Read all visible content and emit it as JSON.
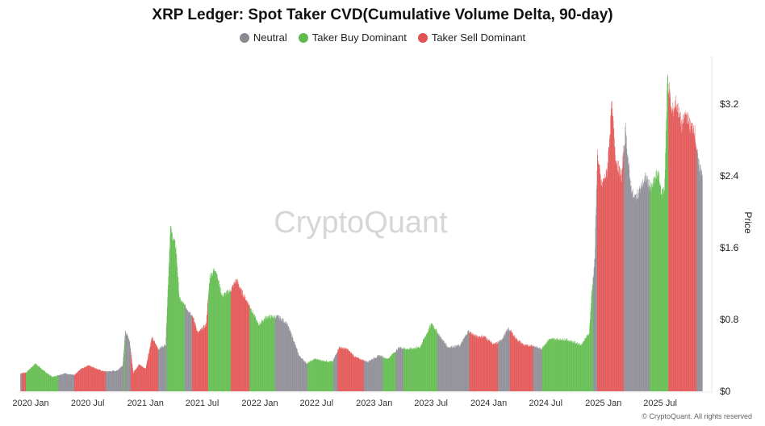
{
  "chart_data": {
    "type": "bar",
    "title": "XRP Ledger: Spot Taker CVD(Cumulative Volume Delta, 90-day)",
    "ylabel": "Price",
    "ylim": [
      0,
      3.7
    ],
    "y_ticks": [
      "$0",
      "$0.8",
      "$1.6",
      "$2.4",
      "$3.2"
    ],
    "y_tick_values": [
      0,
      0.8,
      1.6,
      2.4,
      3.2
    ],
    "y_axis_side": "right",
    "x_ticks": [
      "2020 Jan",
      "2020 Jul",
      "2021 Jan",
      "2021 Jul",
      "2022 Jan",
      "2022 Jul",
      "2023 Jan",
      "2023 Jul",
      "2024 Jan",
      "2024 Jul",
      "2025 Jan",
      "2025 Jul"
    ],
    "x_tick_dates": [
      "2020-01-01",
      "2020-07-01",
      "2021-01-01",
      "2021-07-01",
      "2022-01-01",
      "2022-07-01",
      "2023-01-01",
      "2023-07-01",
      "2024-01-01",
      "2024-07-01",
      "2025-01-01",
      "2025-07-01"
    ],
    "grid": false,
    "legend_position": "top",
    "legend": [
      {
        "key": "neutral",
        "label": "Neutral",
        "color": "#8b8a93"
      },
      {
        "key": "buy",
        "label": "Taker Buy Dominant",
        "color": "#5fbb4b"
      },
      {
        "key": "sell",
        "label": "Taker Sell Dominant",
        "color": "#e25252"
      }
    ],
    "price": [
      [
        "2019-11-29",
        0.2
      ],
      [
        "2019-12-17",
        0.21
      ],
      [
        "2020-01-16",
        0.31
      ],
      [
        "2020-02-14",
        0.22
      ],
      [
        "2020-03-10",
        0.16
      ],
      [
        "2020-03-29",
        0.18
      ],
      [
        "2020-04-18",
        0.2
      ],
      [
        "2020-05-19",
        0.18
      ],
      [
        "2020-06-09",
        0.25
      ],
      [
        "2020-07-04",
        0.29
      ],
      [
        "2020-08-12",
        0.23
      ],
      [
        "2020-08-27",
        0.22
      ],
      [
        "2020-10-02",
        0.23
      ],
      [
        "2020-10-20",
        0.29
      ],
      [
        "2020-10-28",
        0.66
      ],
      [
        "2020-11-10",
        0.58
      ],
      [
        "2020-11-23",
        0.21
      ],
      [
        "2020-12-11",
        0.3
      ],
      [
        "2021-01-01",
        0.25
      ],
      [
        "2021-01-21",
        0.6
      ],
      [
        "2021-02-11",
        0.47
      ],
      [
        "2021-03-06",
        0.52
      ],
      [
        "2021-03-21",
        1.82
      ],
      [
        "2021-04-08",
        1.6
      ],
      [
        "2021-04-19",
        1.03
      ],
      [
        "2021-05-09",
        0.94
      ],
      [
        "2021-05-30",
        0.85
      ],
      [
        "2021-06-17",
        0.65
      ],
      [
        "2021-07-13",
        0.74
      ],
      [
        "2021-07-25",
        1.28
      ],
      [
        "2021-08-12",
        1.37
      ],
      [
        "2021-09-02",
        1.06
      ],
      [
        "2021-09-28",
        1.12
      ],
      [
        "2021-10-18",
        1.24
      ],
      [
        "2021-11-05",
        1.1
      ],
      [
        "2021-12-01",
        0.94
      ],
      [
        "2021-12-27",
        0.74
      ],
      [
        "2022-01-22",
        0.83
      ],
      [
        "2022-03-01",
        0.83
      ],
      [
        "2022-03-27",
        0.76
      ],
      [
        "2022-04-14",
        0.61
      ],
      [
        "2022-05-05",
        0.4
      ],
      [
        "2022-05-30",
        0.31
      ],
      [
        "2022-06-25",
        0.36
      ],
      [
        "2022-07-21",
        0.34
      ],
      [
        "2022-08-21",
        0.33
      ],
      [
        "2022-09-10",
        0.49
      ],
      [
        "2022-10-06",
        0.47
      ],
      [
        "2022-11-01",
        0.38
      ],
      [
        "2022-12-09",
        0.33
      ],
      [
        "2023-01-17",
        0.4
      ],
      [
        "2023-02-12",
        0.36
      ],
      [
        "2023-03-22",
        0.49
      ],
      [
        "2023-04-17",
        0.47
      ],
      [
        "2023-05-26",
        0.49
      ],
      [
        "2023-07-03",
        0.76
      ],
      [
        "2023-07-29",
        0.61
      ],
      [
        "2023-08-24",
        0.49
      ],
      [
        "2023-10-01",
        0.51
      ],
      [
        "2023-10-27",
        0.67
      ],
      [
        "2023-11-22",
        0.61
      ],
      [
        "2023-12-18",
        0.61
      ],
      [
        "2024-01-17",
        0.52
      ],
      [
        "2024-02-07",
        0.56
      ],
      [
        "2024-03-04",
        0.7
      ],
      [
        "2024-03-30",
        0.58
      ],
      [
        "2024-04-24",
        0.51
      ],
      [
        "2024-05-20",
        0.51
      ],
      [
        "2024-06-15",
        0.47
      ],
      [
        "2024-07-11",
        0.58
      ],
      [
        "2024-08-31",
        0.58
      ],
      [
        "2024-10-22",
        0.52
      ],
      [
        "2024-11-16",
        0.65
      ],
      [
        "2024-11-24",
        1.1
      ],
      [
        "2024-12-04",
        1.48
      ],
      [
        "2024-12-12",
        2.65
      ],
      [
        "2024-12-25",
        2.29
      ],
      [
        "2025-01-12",
        2.44
      ],
      [
        "2025-01-27",
        3.19
      ],
      [
        "2025-02-09",
        2.59
      ],
      [
        "2025-02-27",
        2.38
      ],
      [
        "2025-03-12",
        2.92
      ],
      [
        "2025-03-25",
        2.38
      ],
      [
        "2025-04-07",
        2.14
      ],
      [
        "2025-04-25",
        2.23
      ],
      [
        "2025-05-15",
        2.38
      ],
      [
        "2025-06-02",
        2.26
      ],
      [
        "2025-06-23",
        2.44
      ],
      [
        "2025-07-06",
        2.2
      ],
      [
        "2025-07-14",
        2.26
      ],
      [
        "2025-07-24",
        3.52
      ],
      [
        "2025-08-06",
        3.1
      ],
      [
        "2025-08-21",
        3.22
      ],
      [
        "2025-09-08",
        2.95
      ],
      [
        "2025-09-21",
        3.1
      ],
      [
        "2025-10-04",
        2.95
      ],
      [
        "2025-10-17",
        2.95
      ],
      [
        "2025-10-30",
        2.53
      ],
      [
        "2025-11-12",
        2.44
      ]
    ],
    "regimes": [
      [
        "2019-11-29",
        "neutral"
      ],
      [
        "2019-12-04",
        "sell"
      ],
      [
        "2019-12-17",
        "buy"
      ],
      [
        "2020-03-29",
        "neutral"
      ],
      [
        "2020-05-19",
        "sell"
      ],
      [
        "2020-08-27",
        "neutral"
      ],
      [
        "2020-10-25",
        "buy"
      ],
      [
        "2020-10-28",
        "neutral"
      ],
      [
        "2020-11-15",
        "sell"
      ],
      [
        "2021-02-11",
        "neutral"
      ],
      [
        "2021-03-10",
        "buy"
      ],
      [
        "2021-05-06",
        "neutral"
      ],
      [
        "2021-05-30",
        "sell"
      ],
      [
        "2021-07-20",
        "buy"
      ],
      [
        "2021-09-30",
        "sell"
      ],
      [
        "2021-11-29",
        "buy"
      ],
      [
        "2022-02-18",
        "neutral"
      ],
      [
        "2022-06-02",
        "buy"
      ],
      [
        "2022-08-24",
        "neutral"
      ],
      [
        "2022-09-06",
        "sell"
      ],
      [
        "2022-11-29",
        "neutral"
      ],
      [
        "2023-01-28",
        "buy"
      ],
      [
        "2023-03-10",
        "neutral"
      ],
      [
        "2023-04-04",
        "buy"
      ],
      [
        "2023-07-21",
        "neutral"
      ],
      [
        "2023-10-31",
        "sell"
      ],
      [
        "2024-01-31",
        "neutral"
      ],
      [
        "2024-03-08",
        "sell"
      ],
      [
        "2024-05-22",
        "neutral"
      ],
      [
        "2024-06-19",
        "buy"
      ],
      [
        "2024-11-29",
        "neutral"
      ],
      [
        "2024-12-12",
        "sell"
      ],
      [
        "2025-03-07",
        "neutral"
      ],
      [
        "2025-05-29",
        "buy"
      ],
      [
        "2025-07-27",
        "sell"
      ],
      [
        "2025-10-25",
        "neutral"
      ]
    ]
  },
  "watermark": "CryptoQuant",
  "footer": "© CryptoQuant. All rights reserved"
}
